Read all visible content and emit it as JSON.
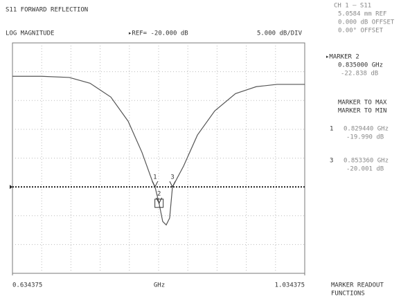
{
  "header": {
    "title": "S11 FORWARD REFLECTION",
    "channel": "CH 1 — S11",
    "ref_plane": "5.0584 mm REF",
    "offset_db": "0.000 dB OFFSET",
    "offset_deg": "0.00° OFFSET"
  },
  "chart_data": {
    "type": "line",
    "format_label": "LOG MAGNITUDE",
    "ref": {
      "value": -20,
      "label": "▸REF= -20.000 dB"
    },
    "scale_label": "5.000 dB/DIV",
    "x_unit": "GHz",
    "xticks": [
      {
        "value": 0.634375,
        "label": "0.634375"
      },
      {
        "value": 1.034375,
        "label": "1.034375"
      }
    ],
    "xlim": [
      0.634375,
      1.034375
    ],
    "ylim": [
      -35,
      5
    ],
    "series": [
      {
        "name": "S11",
        "color": "#555555",
        "x": [
          0.6344,
          0.6742,
          0.7121,
          0.7405,
          0.769,
          0.7927,
          0.8116,
          0.8258,
          0.82944,
          0.835,
          0.84,
          0.8448,
          0.8495,
          0.85336,
          0.8685,
          0.8875,
          0.9112,
          0.9396,
          0.968,
          0.9965,
          1.0344
        ],
        "values": [
          -0.8,
          -0.8,
          -1.0,
          -2.0,
          -4.4,
          -8.6,
          -14.0,
          -19.0,
          -19.99,
          -22.84,
          -26.0,
          -26.6,
          -25.4,
          -20.0,
          -16.4,
          -11.0,
          -6.8,
          -3.8,
          -2.6,
          -2.2,
          -2.2
        ]
      }
    ],
    "markers": [
      {
        "label": "1",
        "x": 0.82944,
        "value": -19.99
      },
      {
        "label": "2",
        "x": 0.835,
        "value": -22.84
      },
      {
        "label": "3",
        "x": 0.85336,
        "value": -20.0
      }
    ]
  },
  "marker_panel": {
    "active": "▸MARKER 2",
    "active_freq": "0.835000 GHz",
    "active_val": "-22.838 dB",
    "list": [
      {
        "num": "1",
        "freq": "0.829440 GHz",
        "val": "-19.990 dB"
      },
      {
        "num": "3",
        "freq": "0.853360 GHz",
        "val": "-20.001 dB"
      }
    ]
  },
  "softkeys": [
    "MARKER TO MAX",
    "MARKER TO MIN"
  ],
  "bottom_softkey": [
    "MARKER READOUT",
    "FUNCTIONS"
  ]
}
